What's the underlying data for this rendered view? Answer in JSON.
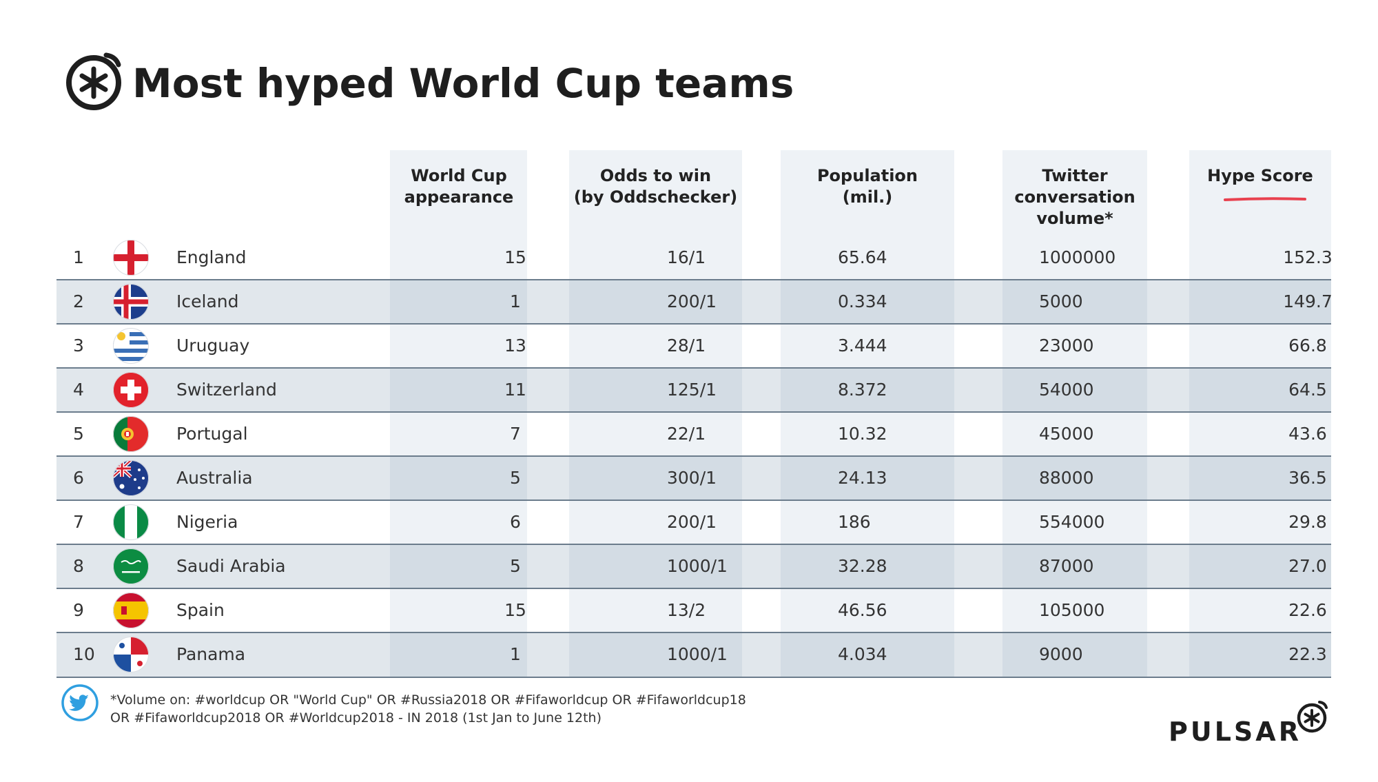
{
  "chart_data": {
    "type": "table",
    "title": "Most hyped World Cup teams",
    "columns": [
      "",
      "",
      "",
      "World Cup appearance",
      "Odds to win (by Oddschecker)",
      "Population (mil.)",
      "Twitter conversation volume*",
      "Hype Score"
    ],
    "header": {
      "appearance": [
        "World Cup",
        "appearance"
      ],
      "odds": [
        "Odds to win",
        "(by Oddschecker)"
      ],
      "population": [
        "Population",
        "(mil.)"
      ],
      "twitter": [
        "Twitter",
        "conversation",
        "volume*"
      ],
      "hype": [
        "Hype Score"
      ]
    },
    "rows": [
      {
        "rank": "1",
        "team": "England",
        "flag": "england-flag-icon",
        "appearance": "15",
        "odds": "16/1",
        "population": "65.64",
        "twitter": "1000000",
        "hype": "152.3"
      },
      {
        "rank": "2",
        "team": "Iceland",
        "flag": "iceland-flag-icon",
        "appearance": "1",
        "odds": "200/1",
        "population": "0.334",
        "twitter": "5000",
        "hype": "149.7"
      },
      {
        "rank": "3",
        "team": "Uruguay",
        "flag": "uruguay-flag-icon",
        "appearance": "13",
        "odds": "28/1",
        "population": "3.444",
        "twitter": "23000",
        "hype": "66.8"
      },
      {
        "rank": "4",
        "team": "Switzerland",
        "flag": "switzerland-flag-icon",
        "appearance": "11",
        "odds": "125/1",
        "population": "8.372",
        "twitter": "54000",
        "hype": "64.5"
      },
      {
        "rank": "5",
        "team": "Portugal",
        "flag": "portugal-flag-icon",
        "appearance": "7",
        "odds": "22/1",
        "population": "10.32",
        "twitter": "45000",
        "hype": "43.6"
      },
      {
        "rank": "6",
        "team": "Australia",
        "flag": "australia-flag-icon",
        "appearance": "5",
        "odds": "300/1",
        "population": "24.13",
        "twitter": "88000",
        "hype": "36.5"
      },
      {
        "rank": "7",
        "team": "Nigeria",
        "flag": "nigeria-flag-icon",
        "appearance": "6",
        "odds": "200/1",
        "population": "186",
        "twitter": "554000",
        "hype": "29.8"
      },
      {
        "rank": "8",
        "team": "Saudi Arabia",
        "flag": "saudi-arabia-flag-icon",
        "appearance": "5",
        "odds": "1000/1",
        "population": "32.28",
        "twitter": "87000",
        "hype": "27.0"
      },
      {
        "rank": "9",
        "team": "Spain",
        "flag": "spain-flag-icon",
        "appearance": "15",
        "odds": "13/2",
        "population": "46.56",
        "twitter": "105000",
        "hype": "22.6"
      },
      {
        "rank": "10",
        "team": "Panama",
        "flag": "panama-flag-icon",
        "appearance": "1",
        "odds": "1000/1",
        "population": "4.034",
        "twitter": "9000",
        "hype": "22.3"
      }
    ]
  },
  "footnote": {
    "line1": "*Volume on: #worldcup OR \"World Cup\" OR #Russia2018 OR #Fifaworldcup OR #Fifaworldcup18",
    "line2": "OR #Fifaworldcup2018 OR #Worldcup2018 - IN 2018 (1st Jan to June 12th)"
  },
  "brand": "PULSAR",
  "icons": {
    "logo": "pulsar-logo-icon",
    "footnote": "twitter-bird-icon"
  },
  "colors": {
    "accent": "#e8414f",
    "column_bg": "#eef2f6",
    "row_alt": "#d5dde5",
    "divider": "#6b7c8c",
    "text": "#222222"
  }
}
